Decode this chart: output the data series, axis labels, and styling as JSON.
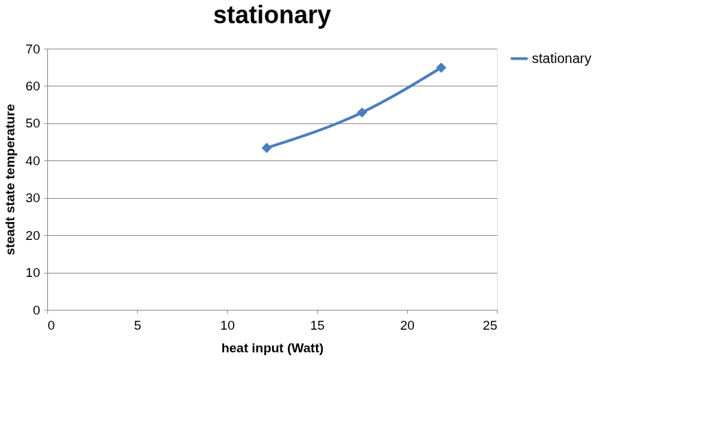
{
  "chart_data": {
    "type": "line",
    "title": "stationary",
    "xlabel": "heat input (Watt)",
    "ylabel": "steadt state temperature",
    "x": [
      12.2,
      17.5,
      21.9
    ],
    "series": [
      {
        "name": "stationary",
        "color": "#4a7ebb",
        "values": [
          43.4,
          52.9,
          64.9
        ]
      }
    ],
    "xlim": [
      0,
      25
    ],
    "xticks": [
      0,
      5,
      10,
      15,
      20,
      25
    ],
    "ylim": [
      0,
      70
    ],
    "yticks": [
      0,
      10,
      20,
      30,
      40,
      50,
      60,
      70
    ],
    "grid": "y",
    "legend": "right",
    "marker": "diamond",
    "line_style": "solid"
  }
}
